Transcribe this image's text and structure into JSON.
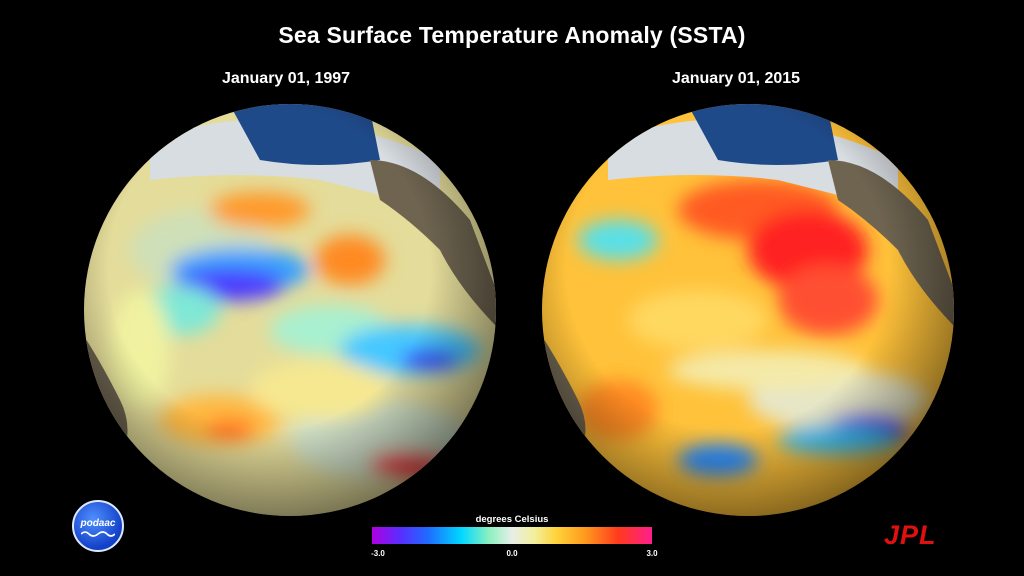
{
  "title": "Sea Surface Temperature Anomaly (SSTA)",
  "panels": [
    {
      "date": "January 01, 1997"
    },
    {
      "date": "January 01, 2015"
    }
  ],
  "legend": {
    "title": "degrees Celsius",
    "min_label": "-3.0",
    "mid_label": "0.0",
    "max_label": "3.0",
    "colors": [
      "#b000e0",
      "#1f6bff",
      "#00d8ff",
      "#e8eee8",
      "#ffd23a",
      "#ff3a1e",
      "#ff1e8c"
    ]
  },
  "logos": {
    "podaac": "podaac",
    "jpl": "JPL"
  }
}
